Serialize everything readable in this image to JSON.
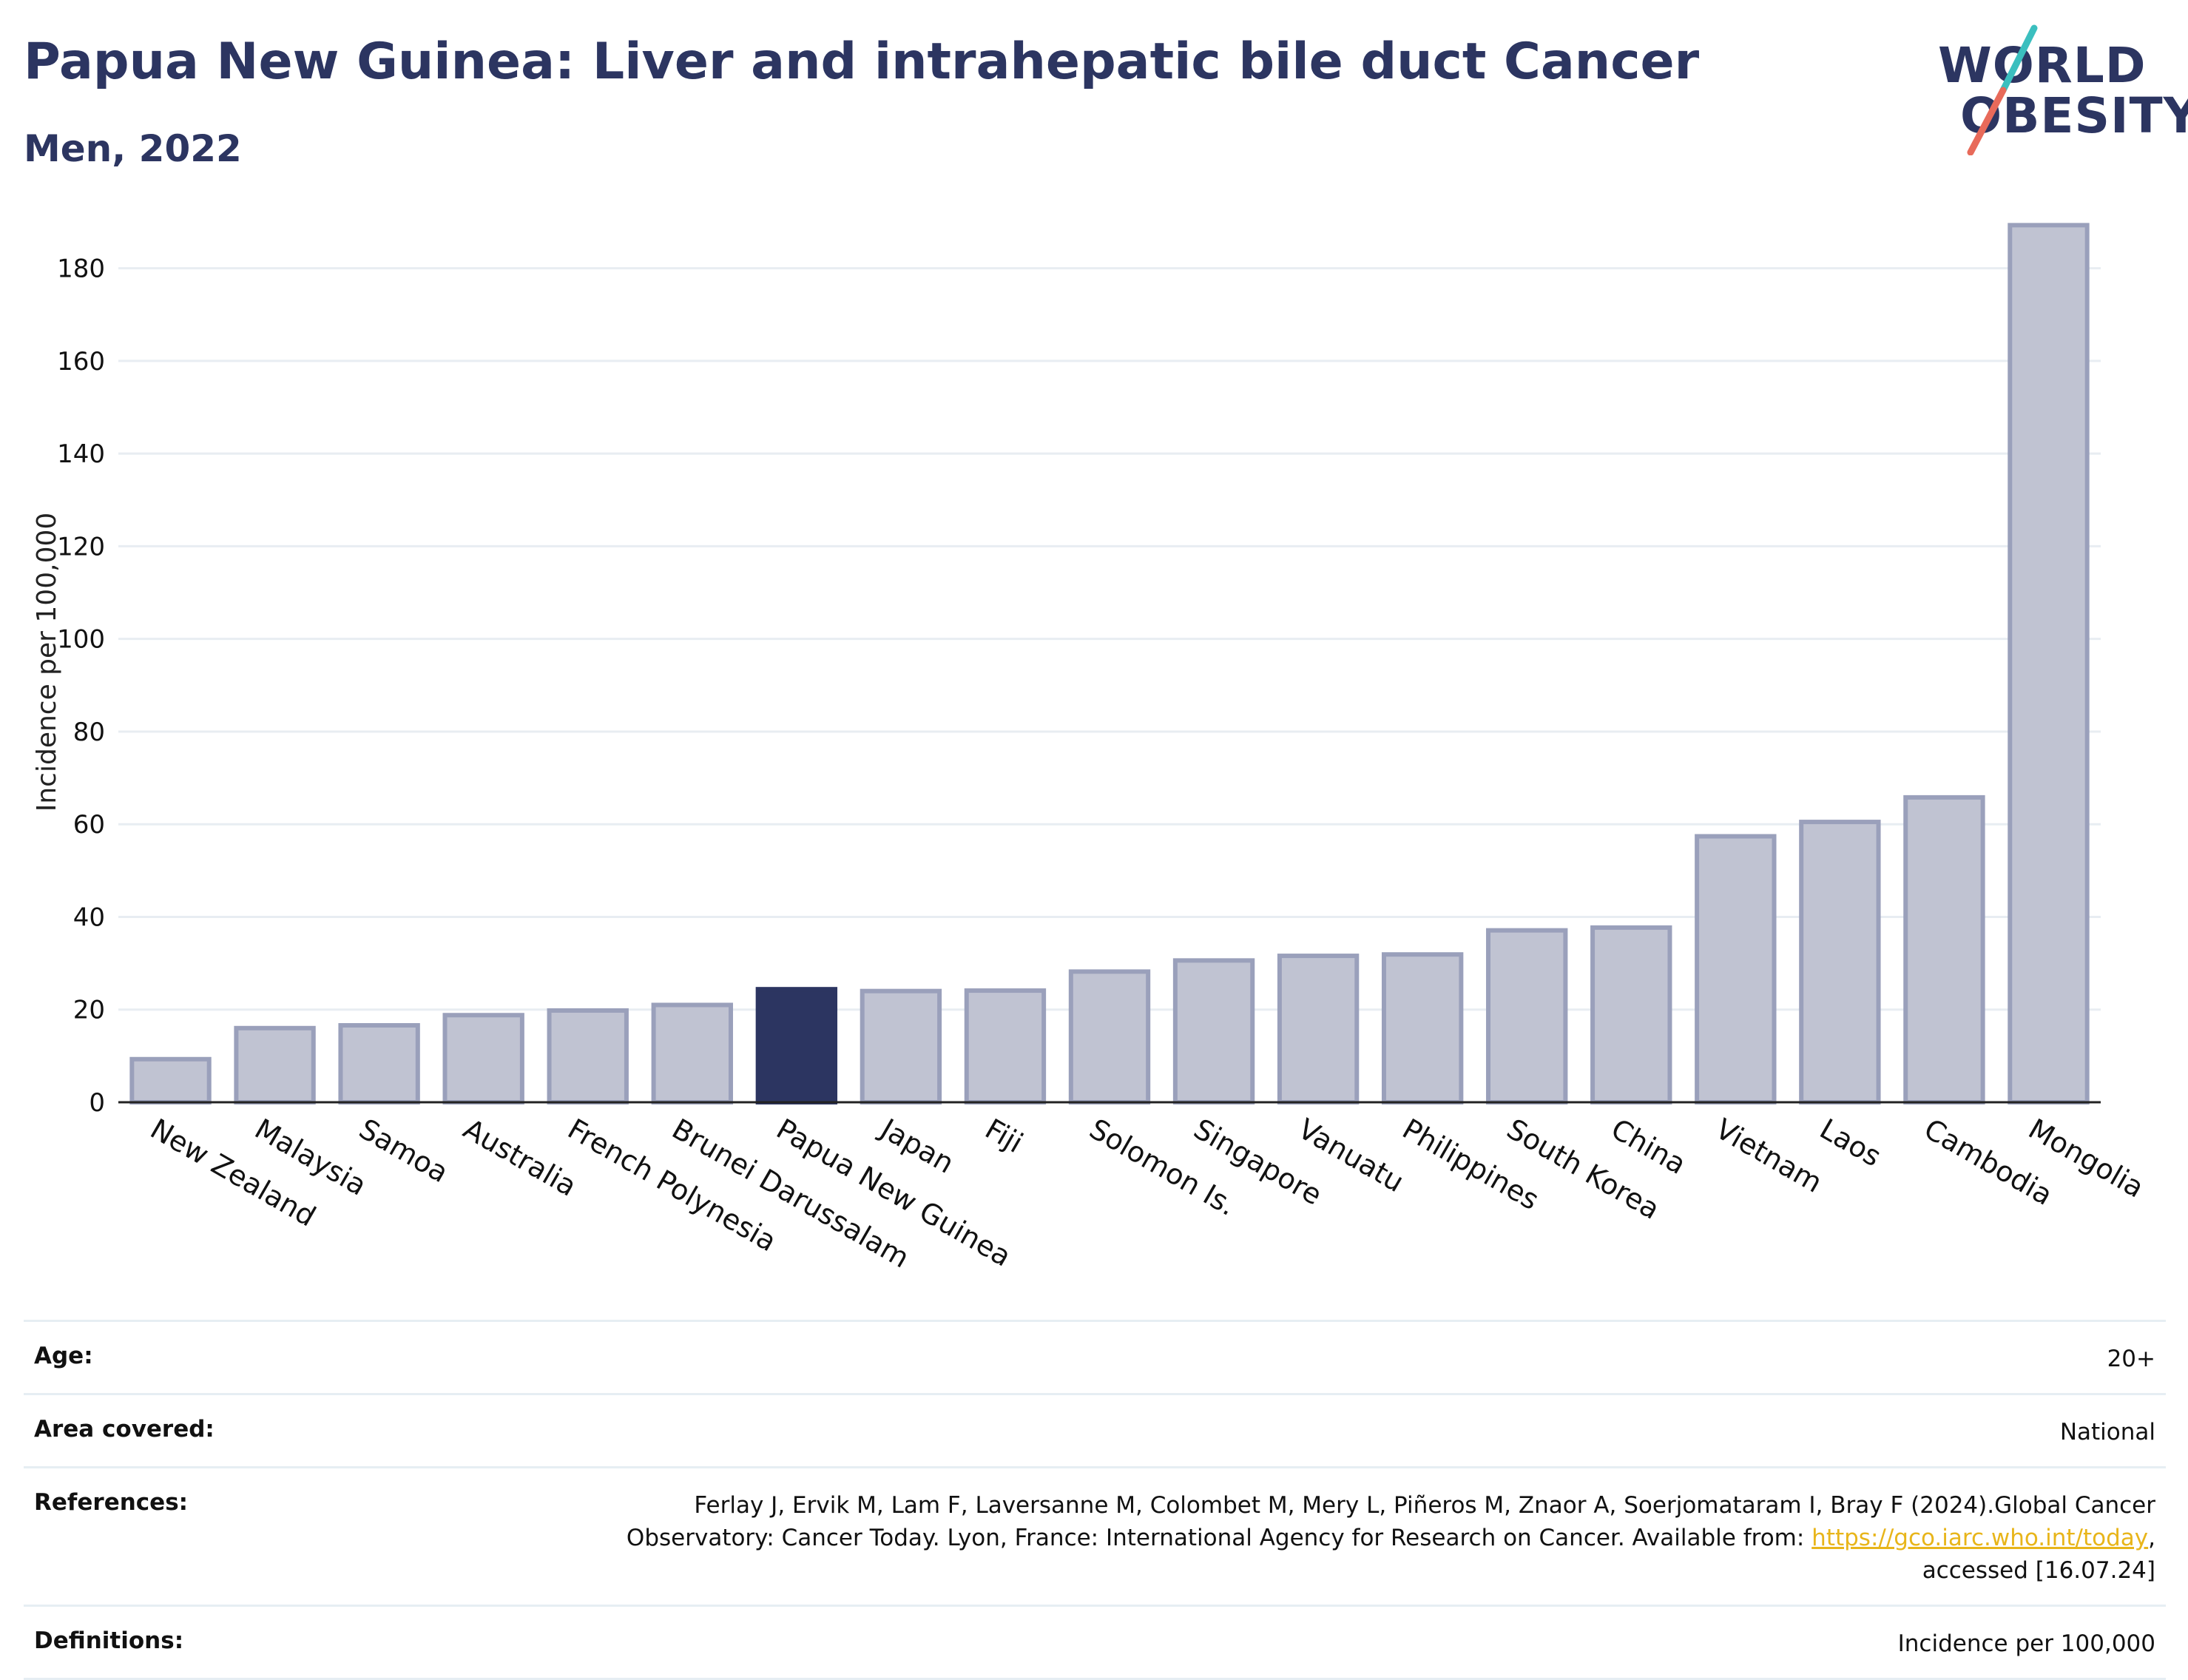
{
  "header": {
    "title": "Papua New Guinea: Liver and intrahepatic bile duct Cancer",
    "subtitle": "Men, 2022",
    "logo_line1": "WORLD",
    "logo_line2": "OBESITY"
  },
  "colors": {
    "title": "#2c3561",
    "bar_default": "#c0c3d2",
    "bar_outline": "#9aa0bb",
    "bar_highlight": "#2c3561",
    "grid": "#e8edf2",
    "link": "#e8b51a",
    "logo_teal": "#3bbfbf",
    "logo_coral": "#e86a5a"
  },
  "chart_data": {
    "type": "bar",
    "ylabel": "Incidence per 100,000",
    "xlabel": "",
    "ylim": [
      0,
      190
    ],
    "yticks": [
      0,
      20,
      40,
      60,
      80,
      100,
      120,
      140,
      160,
      180
    ],
    "grid": true,
    "highlight": "Papua New Guinea",
    "categories": [
      "New Zealand",
      "Malaysia",
      "Samoa",
      "Australia",
      "French Polynesia",
      "Brunei Darussalam",
      "Papua New Guinea",
      "Japan",
      "Fiji",
      "Solomon Is.",
      "Singapore",
      "Vanuatu",
      "Philippines",
      "South Korea",
      "China",
      "Vietnam",
      "Laos",
      "Cambodia",
      "Mongolia"
    ],
    "values": [
      9.3,
      16.0,
      16.6,
      18.8,
      19.8,
      21.0,
      24.4,
      24.0,
      24.1,
      28.2,
      30.6,
      31.6,
      31.9,
      37.1,
      37.7,
      57.4,
      60.5,
      65.8,
      189.3
    ]
  },
  "info": {
    "age_label": "Age:",
    "age_value": "20+",
    "area_label": "Area covered:",
    "area_value": "National",
    "references_label": "References:",
    "references_text_1": "Ferlay J, Ervik M, Lam F, Laversanne M, Colombet M, Mery L, Piñeros M, Znaor A, Soerjomataram I, Bray F (2024).Global Cancer Observatory: Cancer Today. Lyon, France: International Agency for Research on Cancer. Available from: ",
    "references_link": "https://gco.iarc.who.int/today",
    "references_text_2": ", accessed [16.07.24]",
    "definitions_label": "Definitions:",
    "definitions_value": "Incidence per 100,000"
  }
}
